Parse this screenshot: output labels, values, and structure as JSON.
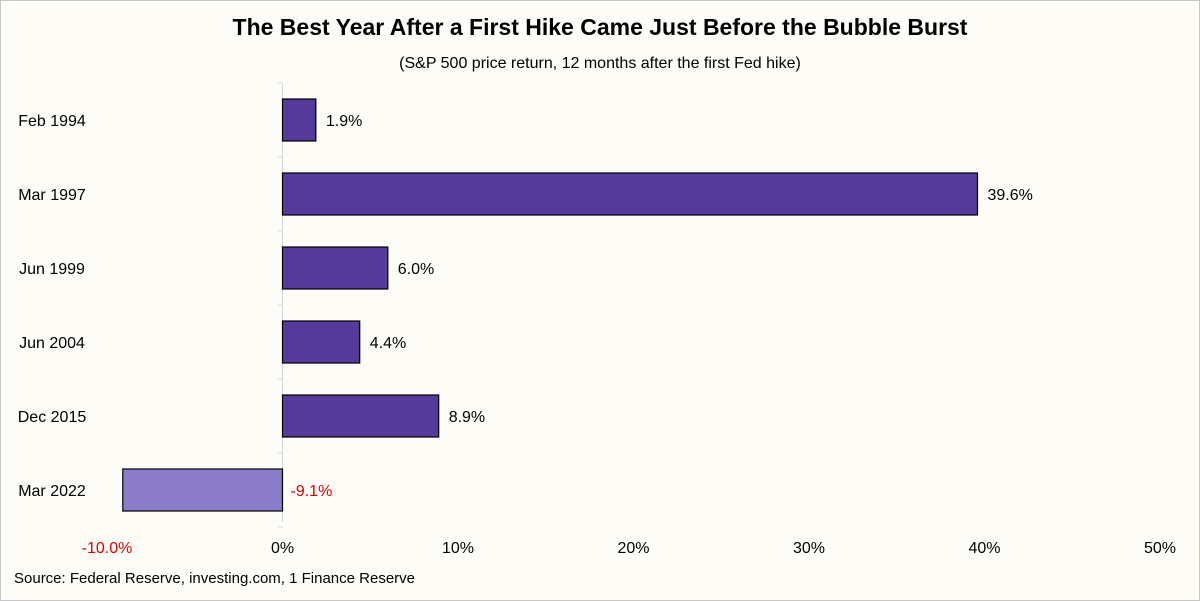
{
  "title": "The Best Year After a First Hike Came Just Before the Bubble Burst",
  "subtitle": "(S&P 500 price return, 12 months after the first Fed hike)",
  "source": "Source: Federal Reserve, investing.com, 1 Finance Reserve",
  "chart_data": {
    "type": "bar",
    "orientation": "horizontal",
    "title": "The Best Year After a First Hike Came Just Before the Bubble Burst",
    "subtitle": "(S&P 500 price return, 12 months after the first Fed hike)",
    "categories": [
      "Feb 1994",
      "Mar 1997",
      "Jun 1999",
      "Jun 2004",
      "Dec 2015",
      "Mar 2022"
    ],
    "values": [
      1.9,
      39.6,
      6.0,
      4.4,
      8.9,
      -9.1
    ],
    "data_labels": [
      "1.9%",
      "39.6%",
      "6.0%",
      "4.4%",
      "8.9%",
      "-9.1%"
    ],
    "xlim": [
      -10,
      50
    ],
    "x_ticks": [
      -10,
      0,
      10,
      20,
      30,
      40,
      50
    ],
    "x_tick_labels": [
      "-10.0%",
      "0%",
      "10%",
      "20%",
      "30%",
      "40%",
      "50%"
    ],
    "xlabel": "",
    "ylabel": "",
    "grid": false,
    "legend": "none",
    "colors": {
      "positive": "#553a9c",
      "negative": "#8a7cc8",
      "negative_label": "#e00000",
      "bar_border": "#000000",
      "axis": "#d4d4d4"
    }
  }
}
